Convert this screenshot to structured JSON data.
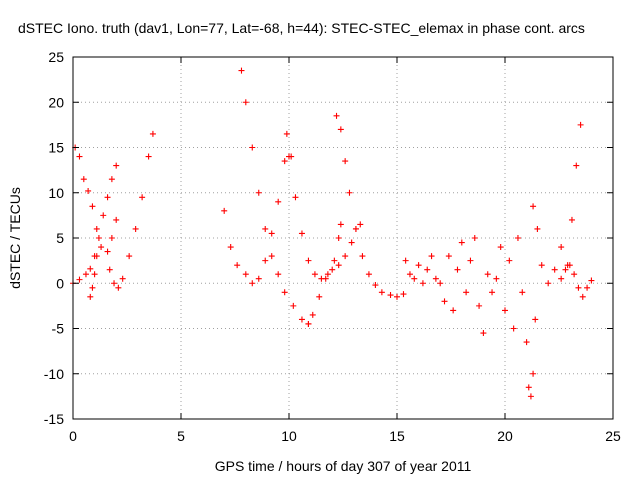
{
  "chart_data": {
    "type": "scatter",
    "title": "dSTEC Iono. truth (dav1, Lon=77, Lat=-68, h=44): STEC-STEC_elemax in phase cont. arcs",
    "xlabel": "GPS time / hours of day 307 of year 2011",
    "ylabel": "dSTEC  / TECUs",
    "xlim": [
      0,
      25
    ],
    "ylim": [
      -15,
      25
    ],
    "xticks": [
      0,
      5,
      10,
      15,
      20,
      25
    ],
    "yticks": [
      -15,
      -10,
      -5,
      0,
      5,
      10,
      15,
      20,
      25
    ],
    "grid": true,
    "marker": "+",
    "color": "#ff0000",
    "series": [
      {
        "arcs": [
          {
            "x": [
              0.0,
              0.3,
              0.6,
              0.8,
              1.0
            ],
            "y": [
              0.0,
              0.4,
              1.0,
              1.6,
              3.0
            ]
          },
          {
            "x": [
              0.1,
              0.3,
              0.5,
              0.7,
              0.9,
              1.1,
              1.3,
              1.6,
              1.8,
              2.0
            ],
            "y": [
              15.0,
              14.0,
              11.5,
              10.2,
              8.5,
              6.0,
              4.0,
              3.5,
              5.0,
              7.0
            ]
          },
          {
            "x": [
              0.8,
              0.9,
              1.0,
              1.1,
              1.2,
              1.4,
              1.6,
              1.8,
              2.0
            ],
            "y": [
              -1.5,
              -0.5,
              1.0,
              3.0,
              5.0,
              7.5,
              9.5,
              11.5,
              13.0
            ]
          },
          {
            "x": [
              1.7,
              1.9,
              2.1,
              2.3,
              2.6,
              2.9,
              3.2,
              3.5,
              3.7
            ],
            "y": [
              1.5,
              0.0,
              -0.5,
              0.5,
              3.0,
              6.0,
              9.5,
              14.0,
              16.5
            ]
          },
          {
            "x": [
              7.0,
              7.3,
              7.6,
              8.0,
              8.3,
              8.6,
              8.9,
              9.2,
              9.5,
              9.8,
              10.0
            ],
            "y": [
              8.0,
              4.0,
              2.0,
              1.0,
              0.0,
              0.5,
              2.5,
              5.5,
              9.0,
              13.5,
              14.0
            ]
          },
          {
            "x": [
              7.8,
              8.0,
              8.3,
              8.6,
              8.9,
              9.2,
              9.5,
              9.8,
              10.2,
              10.6,
              10.9
            ],
            "y": [
              23.5,
              20.0,
              15.0,
              10.0,
              6.0,
              3.0,
              1.0,
              -1.0,
              -2.5,
              -4.0,
              -4.5
            ]
          },
          {
            "x": [
              9.9,
              10.1,
              10.3,
              10.6,
              10.9,
              11.2,
              11.5,
              11.8,
              12.1,
              12.3,
              12.4
            ],
            "y": [
              16.5,
              14.0,
              9.5,
              5.5,
              2.5,
              1.0,
              0.5,
              1.0,
              2.5,
              5.0,
              6.5
            ]
          },
          {
            "x": [
              10.9,
              11.1,
              11.4,
              11.7,
              12.0,
              12.3,
              12.6,
              12.9,
              13.1,
              13.3
            ],
            "y": [
              -4.5,
              -3.5,
              -1.5,
              0.5,
              1.5,
              2.0,
              3.0,
              4.5,
              6.0,
              6.5
            ]
          },
          {
            "x": [
              12.2,
              12.4,
              12.6,
              12.8,
              13.1,
              13.4,
              13.7,
              14.0,
              14.3,
              14.7,
              15.0,
              15.3
            ],
            "y": [
              18.5,
              17.0,
              13.5,
              10.0,
              6.0,
              3.0,
              1.0,
              -0.2,
              -1.0,
              -1.3,
              -1.5,
              -1.2
            ]
          },
          {
            "x": [
              15.4,
              15.6,
              15.8,
              16.0,
              16.2,
              16.4,
              16.6,
              16.8,
              17.0
            ],
            "y": [
              2.5,
              1.0,
              0.5,
              2.0,
              0.0,
              1.5,
              3.0,
              0.5,
              0.0
            ]
          },
          {
            "x": [
              17.2,
              17.4,
              17.6,
              17.8,
              18.0,
              18.2,
              18.4,
              18.6,
              18.8,
              19.0,
              19.2,
              19.4,
              19.6
            ],
            "y": [
              -2.0,
              3.0,
              -3.0,
              1.5,
              4.5,
              -1.0,
              2.5,
              5.0,
              -2.5,
              -5.5,
              1.0,
              -1.0,
              0.5
            ]
          },
          {
            "x": [
              19.8,
              20.0,
              20.2,
              20.4,
              20.6,
              20.8,
              21.0,
              21.1,
              21.2,
              21.3,
              21.4
            ],
            "y": [
              4.0,
              -3.0,
              2.5,
              -5.0,
              5.0,
              -1.0,
              -6.5,
              -11.5,
              -12.5,
              -10.0,
              -4.0
            ]
          },
          {
            "x": [
              21.3,
              21.5,
              21.7,
              22.0,
              22.3,
              22.6,
              22.9,
              23.1,
              23.3,
              23.5
            ],
            "y": [
              8.5,
              6.0,
              2.0,
              0.0,
              1.5,
              4.0,
              2.0,
              7.0,
              13.0,
              17.5
            ]
          },
          {
            "x": [
              22.6,
              22.8,
              23.0,
              23.2,
              23.4,
              23.6,
              23.8,
              24.0
            ],
            "y": [
              0.5,
              1.5,
              2.0,
              1.0,
              -0.5,
              -1.5,
              -0.5,
              0.3
            ]
          }
        ]
      }
    ]
  }
}
